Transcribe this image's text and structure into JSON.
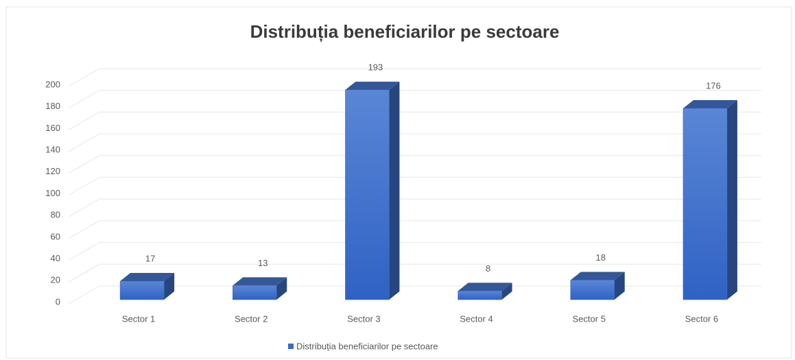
{
  "chart_data": {
    "type": "bar3d",
    "title": "Distribuția beneficiarilor pe sectoare",
    "categories": [
      "Sector 1",
      "Sector 2",
      "Sector 3",
      "Sector 4",
      "Sector 5",
      "Sector 6"
    ],
    "series": [
      {
        "name": "Distribuția beneficiarilor pe sectoare",
        "color": "#3a6cc8",
        "values": [
          17,
          13,
          193,
          8,
          18,
          176
        ]
      }
    ],
    "ylim": [
      0,
      200
    ],
    "yticks": [
      0,
      20,
      40,
      60,
      80,
      100,
      120,
      140,
      160,
      180,
      200
    ],
    "grid": true,
    "legend": "bottom"
  }
}
